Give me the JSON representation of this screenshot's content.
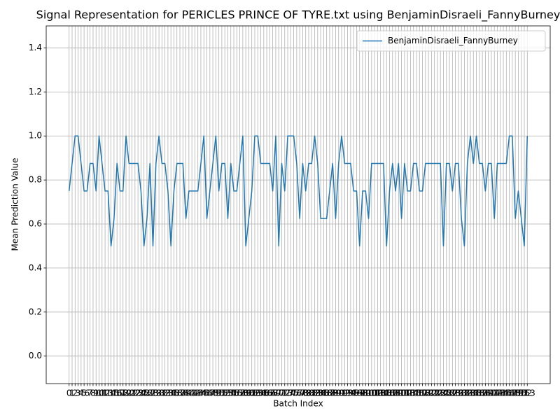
{
  "chart_data": {
    "type": "line",
    "title": "Signal Representation for PERICLES PRINCE OF TYRE.txt using BenjaminDisraeli_FannyBurney",
    "x_label": "Batch Index",
    "y_label": "Mean Prediction Value",
    "x": [
      0,
      1,
      2,
      3,
      4,
      5,
      6,
      7,
      8,
      9,
      10,
      11,
      12,
      13,
      14,
      15,
      16,
      17,
      18,
      19,
      20,
      21,
      22,
      23,
      24,
      25,
      26,
      27,
      28,
      29,
      30,
      31,
      32,
      33,
      34,
      35,
      36,
      37,
      38,
      39,
      40,
      41,
      42,
      43,
      44,
      45,
      46,
      47,
      48,
      49,
      50,
      51,
      52,
      53,
      54,
      55,
      56,
      57,
      58,
      59,
      60,
      61,
      62,
      63,
      64,
      65,
      66,
      67,
      68,
      69,
      70,
      71,
      72,
      73,
      74,
      75,
      76,
      77,
      78,
      79,
      80,
      81,
      82,
      83,
      84,
      85,
      86,
      87,
      88,
      89,
      90,
      91,
      92,
      93,
      94,
      95,
      96,
      97,
      98,
      99,
      100,
      101,
      102,
      103,
      104,
      105,
      106,
      107,
      108,
      109,
      110,
      111,
      112,
      113,
      114,
      115,
      116,
      117,
      118,
      119,
      120,
      121,
      122,
      123,
      124,
      125,
      126,
      127,
      128,
      129,
      130,
      131,
      132,
      133,
      134,
      135,
      136,
      137,
      138,
      139,
      140,
      141,
      142,
      143,
      144,
      145,
      146,
      147,
      148,
      149,
      150,
      151,
      152,
      153
    ],
    "series": [
      {
        "name": "BenjaminDisraeli_FannyBurney",
        "color": "#1f77b4",
        "values": [
          0.75,
          0.875,
          1,
          1,
          0.875,
          0.75,
          0.75,
          0.875,
          0.875,
          0.75,
          1,
          0.875,
          0.75,
          0.75,
          0.5,
          0.625,
          0.875,
          0.75,
          0.75,
          1,
          0.875,
          0.875,
          0.875,
          0.875,
          0.75,
          0.5,
          0.625,
          0.875,
          0.5,
          0.875,
          1,
          0.875,
          0.875,
          0.75,
          0.5,
          0.75,
          0.875,
          0.875,
          0.875,
          0.625,
          0.75,
          0.75,
          0.75,
          0.75,
          0.875,
          1,
          0.625,
          0.75,
          0.875,
          1,
          0.75,
          0.875,
          0.875,
          0.625,
          0.875,
          0.75,
          0.75,
          0.875,
          1,
          0.5,
          0.625,
          0.75,
          1,
          1,
          0.875,
          0.875,
          0.875,
          0.875,
          0.75,
          1,
          0.5,
          0.875,
          0.75,
          1,
          1,
          1,
          0.875,
          0.625,
          0.875,
          0.75,
          0.875,
          0.875,
          1,
          0.875,
          0.625,
          0.625,
          0.625,
          0.75,
          0.875,
          0.625,
          0.875,
          1,
          0.875,
          0.875,
          0.875,
          0.75,
          0.75,
          0.5,
          0.75,
          0.75,
          0.625,
          0.875,
          0.875,
          0.875,
          0.875,
          0.875,
          0.5,
          0.75,
          0.875,
          0.75,
          0.875,
          0.625,
          0.875,
          0.75,
          0.75,
          0.875,
          0.875,
          0.75,
          0.75,
          0.875,
          0.875,
          0.875,
          0.875,
          0.875,
          0.875,
          0.5,
          0.875,
          0.875,
          0.75,
          0.875,
          0.875,
          0.625,
          0.5,
          0.875,
          1,
          0.875,
          1,
          0.875,
          0.875,
          0.75,
          0.875,
          0.875,
          0.625,
          0.875,
          0.875,
          0.875,
          0.875,
          1,
          1,
          0.625,
          0.75,
          0.625,
          0.5,
          1
        ]
      }
    ],
    "xlim": [
      -7.65,
      160.65
    ],
    "xticks": [
      0,
      1,
      2,
      3,
      4,
      5,
      6,
      7,
      8,
      9,
      10,
      11,
      12,
      13,
      14,
      15,
      16,
      17,
      18,
      19,
      20,
      21,
      22,
      23,
      24,
      25,
      26,
      27,
      28,
      29,
      30,
      31,
      32,
      33,
      34,
      35,
      36,
      37,
      38,
      39,
      40,
      41,
      42,
      43,
      44,
      45,
      46,
      47,
      48,
      49,
      50,
      51,
      52,
      53,
      54,
      55,
      56,
      57,
      58,
      59,
      60,
      61,
      62,
      63,
      64,
      65,
      66,
      67,
      68,
      69,
      70,
      71,
      72,
      73,
      74,
      75,
      76,
      77,
      78,
      79,
      80,
      81,
      82,
      83,
      84,
      85,
      86,
      87,
      88,
      89,
      90,
      91,
      92,
      93,
      94,
      95,
      96,
      97,
      98,
      99,
      100,
      101,
      102,
      103,
      104,
      105,
      106,
      107,
      108,
      109,
      110,
      111,
      112,
      113,
      114,
      115,
      116,
      117,
      118,
      119,
      120,
      121,
      122,
      123,
      124,
      125,
      126,
      127,
      128,
      129,
      130,
      131,
      132,
      133,
      134,
      135,
      136,
      137,
      138,
      139,
      140,
      141,
      142,
      143,
      144,
      145,
      146,
      147,
      148,
      149,
      150,
      151,
      152,
      153
    ],
    "ylim": [
      -0.125,
      1.5
    ],
    "yticks": [
      {
        "value": 0,
        "label": "0.0"
      },
      0.2,
      0.4,
      0.6,
      0.8,
      {
        "value": 1,
        "label": "1.0"
      },
      1.2,
      1.4
    ],
    "grid": true,
    "legend": "upper right"
  }
}
